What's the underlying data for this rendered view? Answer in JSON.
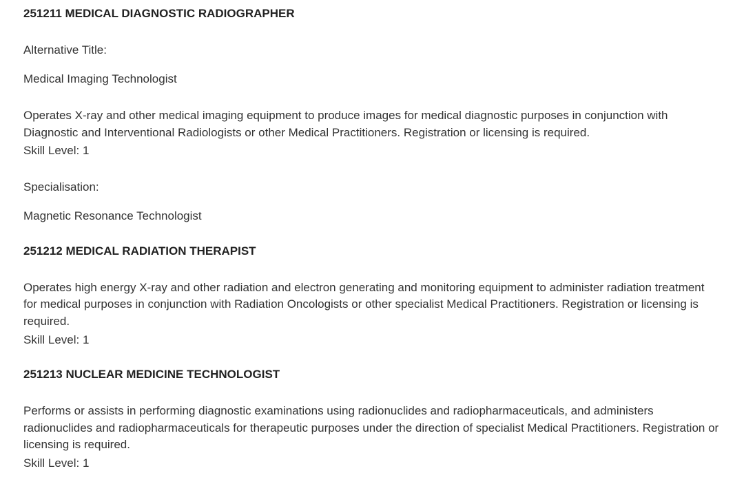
{
  "occupations": [
    {
      "heading": "251211 MEDICAL DIAGNOSTIC RADIOGRAPHER",
      "altTitleLabel": "Alternative Title:",
      "altTitleValue": "Medical Imaging Technologist",
      "description": "Operates X-ray and other medical imaging equipment to produce images for medical diagnostic purposes in conjunction with Diagnostic and Interventional Radiologists or other Medical Practitioners. Registration or licensing is required.",
      "skillLevel": "Skill Level: 1",
      "specialisationLabel": "Specialisation:",
      "specialisationValue": "Magnetic Resonance Technologist"
    },
    {
      "heading": "251212 MEDICAL RADIATION THERAPIST",
      "description": "Operates high energy X-ray and other radiation and electron generating and monitoring equipment to administer radiation treatment for medical purposes in conjunction with Radiation Oncologists or other specialist Medical Practitioners. Registration or licensing is required.",
      "skillLevel": "Skill Level: 1"
    },
    {
      "heading": "251213 NUCLEAR MEDICINE TECHNOLOGIST",
      "description": "Performs or assists in performing diagnostic examinations using radionuclides and radiopharmaceuticals, and administers radionuclides and radiopharmaceuticals for therapeutic purposes under the direction of specialist Medical Practitioners. Registration or licensing is required.",
      "skillLevel": "Skill Level: 1"
    }
  ],
  "colors": {
    "text": "#333333",
    "heading": "#222222",
    "background": "#ffffff"
  },
  "typography": {
    "fontFamily": "Arial, Helvetica, sans-serif",
    "bodyFontSize": 17,
    "headingFontWeight": "bold",
    "lineHeight": 1.45
  }
}
